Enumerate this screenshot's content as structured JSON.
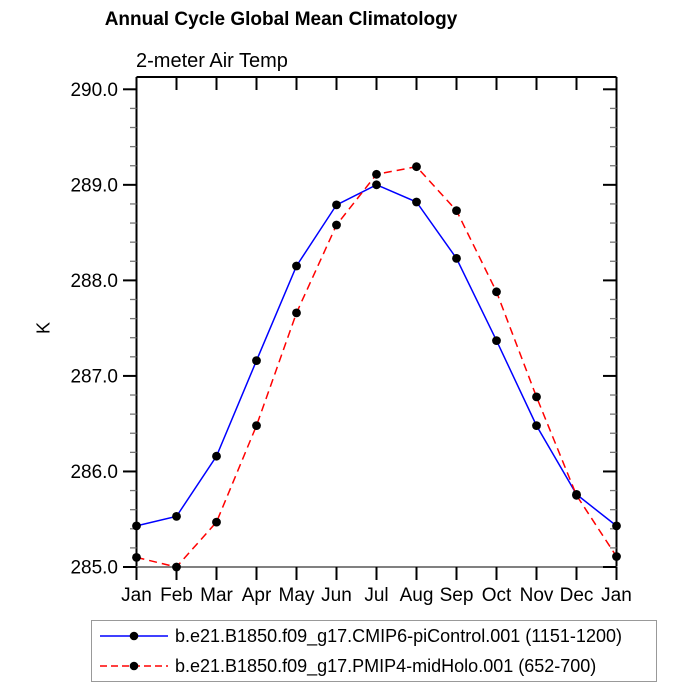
{
  "chart_data": {
    "type": "line",
    "title": "Annual Cycle Global Mean Climatology",
    "subtitle": "2-meter Air Temp",
    "ylabel": "K",
    "xlabel": "",
    "categories": [
      "Jan",
      "Feb",
      "Mar",
      "Apr",
      "May",
      "Jun",
      "Jul",
      "Aug",
      "Sep",
      "Oct",
      "Nov",
      "Dec",
      "Jan"
    ],
    "y_tick_labels": [
      "285.0",
      "286.0",
      "287.0",
      "288.0",
      "289.0",
      "290.0"
    ],
    "y_major_values": [
      285.0,
      286.0,
      287.0,
      288.0,
      289.0,
      290.0
    ],
    "ylim": [
      285.0,
      290.13
    ],
    "y_major_step": 1.0,
    "y_minor_step": 0.2,
    "grid": false,
    "legend_position": "bottom-box",
    "series": [
      {
        "name": "b.e21.B1850.f09_g17.CMIP6-piControl.001 (1151-1200)",
        "color": "#0000ff",
        "line_style": "solid",
        "marker": "filled-circle",
        "marker_color": "#000000",
        "values": [
          285.43,
          285.53,
          286.16,
          287.16,
          288.15,
          288.79,
          289.0,
          288.82,
          288.23,
          287.37,
          286.48,
          285.76,
          285.43
        ]
      },
      {
        "name": "b.e21.B1850.f09_g17.PMIP4-midHolo.001 (652-700)",
        "color": "#ff0000",
        "line_style": "dashed",
        "marker": "filled-circle",
        "marker_color": "#000000",
        "values": [
          285.1,
          285.0,
          285.47,
          286.48,
          287.66,
          288.58,
          289.11,
          289.19,
          288.73,
          287.88,
          286.78,
          285.75,
          285.11
        ]
      }
    ],
    "colors": {
      "frame": "#000000",
      "bottom_axis": "#808080",
      "minor_tick": "#777777",
      "legend_border": "#999999",
      "background": "#ffffff",
      "text": "#000000"
    }
  }
}
